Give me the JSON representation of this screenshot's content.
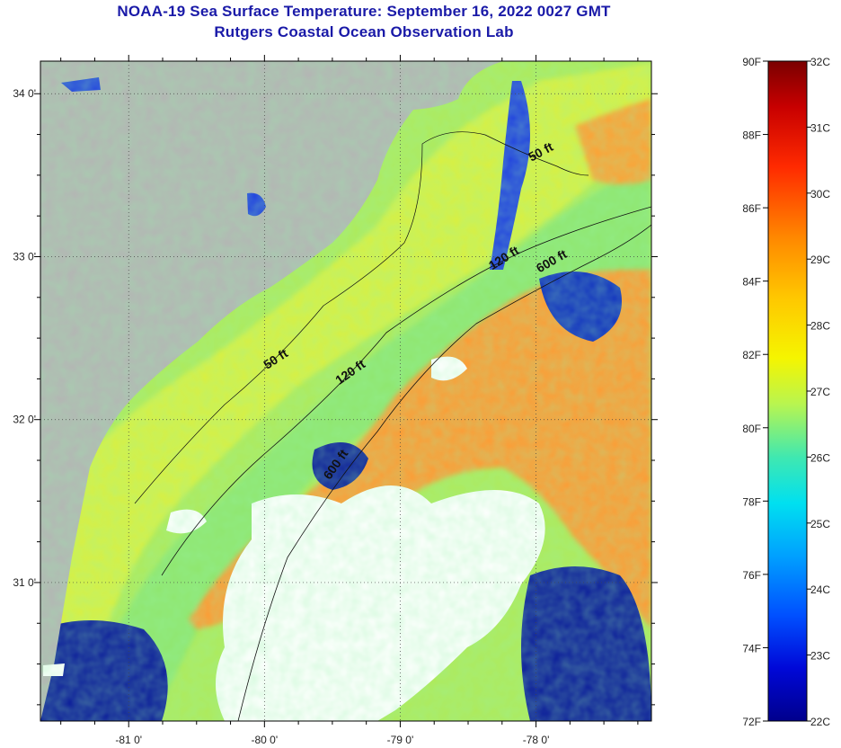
{
  "title_line1": "NOAA-19 Sea Surface Temperature:  September 16, 2022 0027 GMT",
  "title_line2": "Rutgers Coastal Ocean Observation Lab",
  "map": {
    "lon_range": [
      -81.65,
      -77.15
    ],
    "lat_range": [
      30.15,
      34.2
    ],
    "lat_ticks": [
      {
        "value": 34.0,
        "label": "34 0'"
      },
      {
        "value": 33.0,
        "label": "33 0'"
      },
      {
        "value": 32.0,
        "label": "32 0'"
      },
      {
        "value": 31.0,
        "label": "31 0'"
      }
    ],
    "lon_ticks": [
      {
        "value": -81.0,
        "label": "-81 0'"
      },
      {
        "value": -80.0,
        "label": "-80 0'"
      },
      {
        "value": -79.0,
        "label": "-79 0'"
      },
      {
        "value": -78.0,
        "label": "-78 0'"
      }
    ],
    "contour_labels": [
      {
        "text": "50 ft",
        "lon": -77.95,
        "lat": 33.62,
        "angle": -28
      },
      {
        "text": "120 ft",
        "lon": -78.22,
        "lat": 32.97,
        "angle": -32
      },
      {
        "text": "600 ft",
        "lon": -77.87,
        "lat": 32.95,
        "angle": -30
      },
      {
        "text": "50 ft",
        "lon": -79.9,
        "lat": 32.35,
        "angle": -33
      },
      {
        "text": "120 ft",
        "lon": -79.35,
        "lat": 32.27,
        "angle": -35
      },
      {
        "text": "600 ft",
        "lon": -79.45,
        "lat": 31.71,
        "angle": -55
      }
    ],
    "colors": {
      "land": "#b4b4b4",
      "cloud": "#ffffff",
      "coastal_shelf": "#d8ef33",
      "mid_shelf": "#bff056",
      "warm_core": "#ff8c2a",
      "cold_patch": "#06108e"
    }
  },
  "colorbar": {
    "f_labels": [
      "90F",
      "88F",
      "86F",
      "84F",
      "82F",
      "80F",
      "78F",
      "76F",
      "74F",
      "72F"
    ],
    "c_labels": [
      "32C",
      "31C",
      "30C",
      "29C",
      "28C",
      "27C",
      "26C",
      "25C",
      "24C",
      "23C",
      "22C"
    ],
    "f_range": [
      72,
      90
    ],
    "c_range": [
      22,
      32
    ],
    "gradient_stops": [
      {
        "t": 0.0,
        "color": "#7a0000"
      },
      {
        "t": 0.07,
        "color": "#c80000"
      },
      {
        "t": 0.16,
        "color": "#ff2a00"
      },
      {
        "t": 0.27,
        "color": "#ff8a00"
      },
      {
        "t": 0.36,
        "color": "#ffc800"
      },
      {
        "t": 0.45,
        "color": "#f5f500"
      },
      {
        "t": 0.52,
        "color": "#b8f550"
      },
      {
        "t": 0.6,
        "color": "#40e8b0"
      },
      {
        "t": 0.67,
        "color": "#00e0f0"
      },
      {
        "t": 0.75,
        "color": "#00a0ff"
      },
      {
        "t": 0.84,
        "color": "#0050ff"
      },
      {
        "t": 0.92,
        "color": "#0008d8"
      },
      {
        "t": 1.0,
        "color": "#00008c"
      }
    ]
  }
}
